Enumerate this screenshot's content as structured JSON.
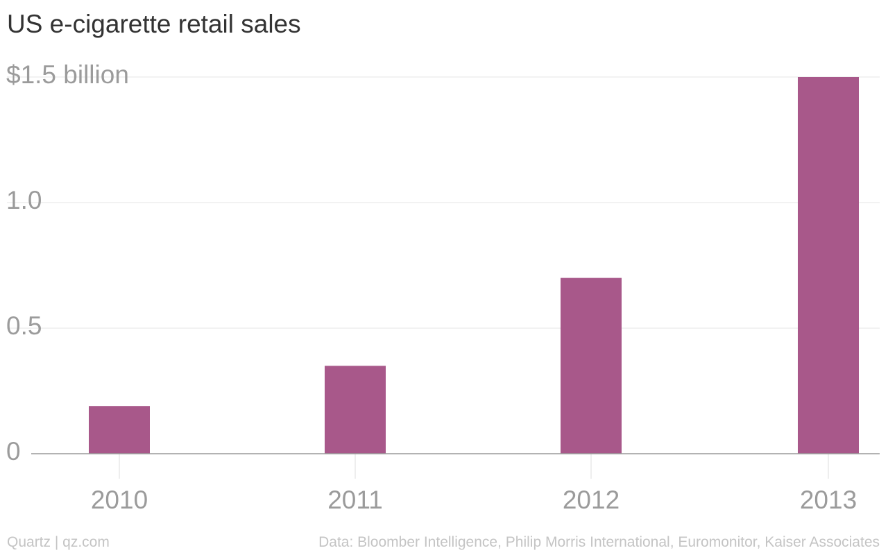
{
  "chart_data": {
    "type": "bar",
    "title": "US e-cigarette retail sales",
    "categories": [
      "2010",
      "2011",
      "2012",
      "2013"
    ],
    "values": [
      0.19,
      0.35,
      0.7,
      1.5
    ],
    "xlabel": "",
    "ylabel": "",
    "ylim": [
      0,
      1.5
    ],
    "y_ticks": [
      0,
      0.5,
      1.0,
      1.5
    ],
    "y_tick_labels": [
      "0",
      "0.5",
      "1.0",
      "$1.5 billion"
    ],
    "grid": true,
    "legend": "none",
    "bar_color": "#a8588a",
    "grid_color": "#eeeeee",
    "axis_color": "#9a9a9a",
    "tick_label_color": "#9b9b9b"
  },
  "footer": {
    "source_credit": "Quartz | qz.com",
    "data_credit": "Data: Bloomber Intelligence, Philip Morris International, Euromonitor, Kaiser Associates"
  }
}
